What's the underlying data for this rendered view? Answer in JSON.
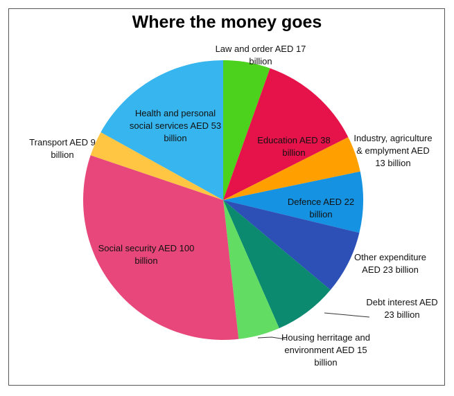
{
  "chart_data": {
    "type": "pie",
    "title": "Where the money goes",
    "categories": [
      "Law and order",
      "Education",
      "Industry, agriculture & emplyment",
      "Defence",
      "Other expenditure",
      "Debt interest",
      "Housing herritage and environment",
      "Social security",
      "Transport",
      "Health and personal social services"
    ],
    "values": [
      17,
      38,
      13,
      22,
      23,
      23,
      15,
      100,
      9,
      53
    ],
    "value_labels": [
      "AED 17 billion",
      "AED 38 billion",
      "AED 13 billion",
      "AED 22 billion",
      "AED 23 billion",
      "AED 23 billion",
      "AED 15 billion",
      "AED 100 billion",
      "AED 9 billion",
      "AED 53 billion"
    ],
    "colors": [
      "#4cd11c",
      "#e6124a",
      "#ffa000",
      "#1592e2",
      "#2c50b6",
      "#0b8a6f",
      "#62dc62",
      "#e8477b",
      "#ffc644",
      "#36b5ee"
    ]
  }
}
